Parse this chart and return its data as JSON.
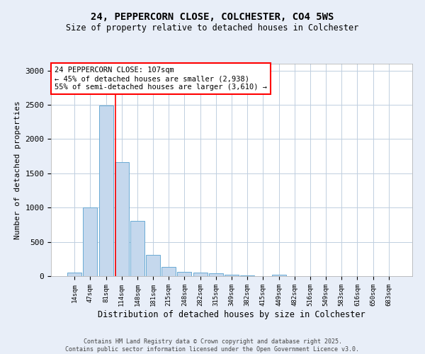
{
  "title": "24, PEPPERCORN CLOSE, COLCHESTER, CO4 5WS",
  "subtitle": "Size of property relative to detached houses in Colchester",
  "xlabel": "Distribution of detached houses by size in Colchester",
  "ylabel": "Number of detached properties",
  "bar_labels": [
    "14sqm",
    "47sqm",
    "81sqm",
    "114sqm",
    "148sqm",
    "181sqm",
    "215sqm",
    "248sqm",
    "282sqm",
    "315sqm",
    "349sqm",
    "382sqm",
    "415sqm",
    "449sqm",
    "482sqm",
    "516sqm",
    "549sqm",
    "583sqm",
    "616sqm",
    "650sqm",
    "683sqm"
  ],
  "bar_values": [
    55,
    1005,
    2490,
    1660,
    810,
    305,
    130,
    60,
    55,
    40,
    25,
    15,
    0,
    20,
    0,
    0,
    0,
    0,
    0,
    0,
    0
  ],
  "bar_color": "#c5d8ed",
  "bar_edge_color": "#6aaad4",
  "ylim": [
    0,
    3100
  ],
  "yticks": [
    0,
    500,
    1000,
    1500,
    2000,
    2500,
    3000
  ],
  "red_line_x": 2.62,
  "annotation_text": "24 PEPPERCORN CLOSE: 107sqm\n← 45% of detached houses are smaller (2,938)\n55% of semi-detached houses are larger (3,610) →",
  "footer_text": "Contains HM Land Registry data © Crown copyright and database right 2025.\nContains public sector information licensed under the Open Government Licence v3.0.",
  "bg_color": "#e8eef8",
  "plot_bg_color": "#ffffff"
}
